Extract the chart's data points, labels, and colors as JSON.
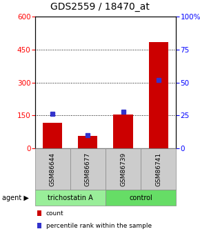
{
  "title": "GDS2559 / 18470_at",
  "categories": [
    "GSM86644",
    "GSM86677",
    "GSM86739",
    "GSM86741"
  ],
  "red_values": [
    115,
    55,
    155,
    485
  ],
  "blue_values": [
    26,
    10,
    28,
    52
  ],
  "left_ylim": [
    0,
    600
  ],
  "right_ylim": [
    0,
    100
  ],
  "left_yticks": [
    0,
    150,
    300,
    450,
    600
  ],
  "right_yticks": [
    0,
    25,
    50,
    75,
    100
  ],
  "right_yticklabels": [
    "0",
    "25",
    "50",
    "75",
    "100%"
  ],
  "bar_color": "#cc0000",
  "marker_color": "#3333cc",
  "bar_width": 0.55,
  "grid_lines": [
    150,
    300,
    450
  ],
  "groups": [
    {
      "label": "trichostatin A",
      "cols": [
        0,
        1
      ],
      "color": "#99ee99"
    },
    {
      "label": "control",
      "cols": [
        2,
        3
      ],
      "color": "#66dd66"
    }
  ],
  "agent_label": "agent",
  "legend_items": [
    {
      "color": "#cc0000",
      "label": "count"
    },
    {
      "color": "#3333cc",
      "label": "percentile rank within the sample"
    }
  ],
  "title_fontsize": 10,
  "tick_fontsize": 7.5,
  "cat_fontsize": 6.5
}
